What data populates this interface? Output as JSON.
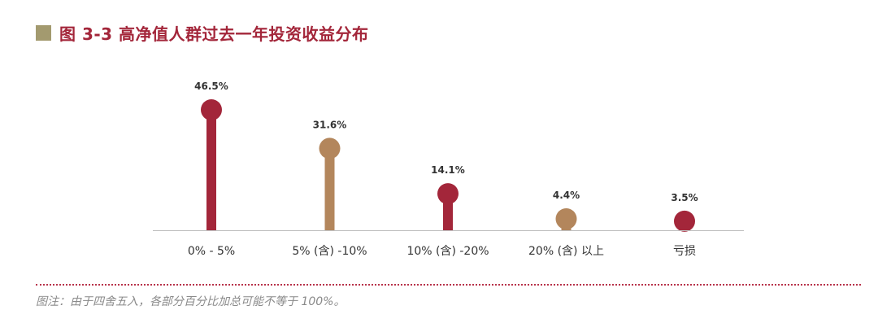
{
  "title": "图 3-3  高净值人群过去一年投资收益分布",
  "note": "图注：由于四舍五入，各部分百分比加总可能不等于 100%。",
  "colors": {
    "red": "#a3263a",
    "tan": "#b3865c",
    "title_square": "#a39a6f",
    "axis": "#bfbfbf",
    "note_line": "#b8324a"
  },
  "chart_data": {
    "type": "bar",
    "title": "图 3-3  高净值人群过去一年投资收益分布",
    "xlabel": "",
    "ylabel": "",
    "categories": [
      "0% - 5%",
      "5% (含) -10%",
      "10% (含) -20%",
      "20% (含) 以上",
      "亏损"
    ],
    "values": [
      46.5,
      31.6,
      14.1,
      4.4,
      3.5
    ],
    "value_labels": [
      "46.5%",
      "31.6%",
      "14.1%",
      "4.4%",
      "3.5%"
    ],
    "bar_colors": [
      "#a3263a",
      "#b3865c",
      "#a3263a",
      "#b3865c",
      "#a3263a"
    ],
    "ylim": [
      0,
      46.5
    ],
    "grid": false,
    "legend": "none",
    "style": "lollipop"
  }
}
